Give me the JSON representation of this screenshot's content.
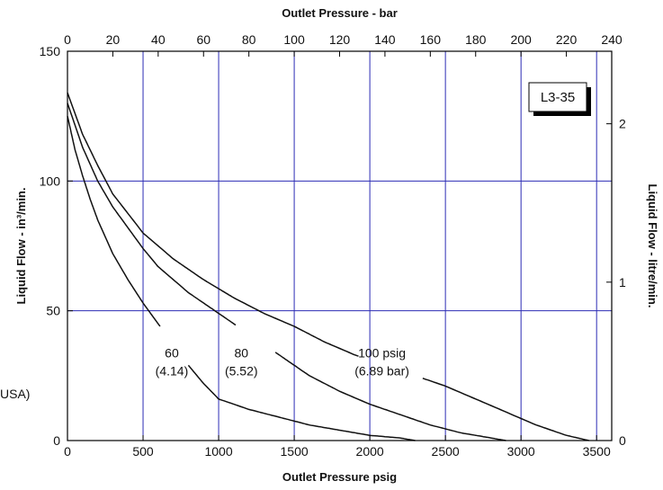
{
  "stray_text": "USA)",
  "chart_data": {
    "type": "line",
    "badge": "L3-35",
    "xlabel": "Outlet Pressure psig",
    "x2label": "Outlet Pressure - bar",
    "ylabel": "Liquid Flow - in³/min.",
    "y2label": "Liquid Flow - litre/min.",
    "xlim": [
      0,
      3600
    ],
    "ylim": [
      0,
      150
    ],
    "x2lim": [
      0,
      240
    ],
    "y2lim": [
      0,
      2.4578
    ],
    "x_ticks": [
      0,
      500,
      1000,
      1500,
      2000,
      2500,
      3000,
      3500
    ],
    "y_ticks": [
      0,
      50,
      100,
      150
    ],
    "x2_ticks": [
      0,
      20,
      40,
      60,
      80,
      100,
      120,
      140,
      160,
      180,
      200,
      220,
      240
    ],
    "y2_ticks": [
      0,
      1,
      2
    ],
    "grid_x": [
      500,
      1000,
      1500,
      2000,
      2500,
      3000,
      3500
    ],
    "grid_y": [
      50,
      100
    ],
    "grid_color": "#2c2cb4",
    "series": [
      {
        "name": "100 psig",
        "x": [
          0,
          100,
          200,
          300,
          500,
          700,
          900,
          1100,
          1300,
          1500,
          1700,
          1900,
          2100,
          2300,
          2500,
          2700,
          2900,
          3100,
          3300,
          3450
        ],
        "y": [
          134,
          118,
          106,
          95,
          80,
          70,
          62,
          55,
          49,
          44,
          38,
          33,
          29,
          25,
          21,
          16,
          11,
          6,
          2,
          0
        ]
      },
      {
        "name": "80",
        "x": [
          0,
          100,
          200,
          300,
          400,
          500,
          600,
          800,
          1000,
          1100,
          1200,
          1400,
          1600,
          1800,
          2000,
          2200,
          2400,
          2600,
          2800,
          2900
        ],
        "y": [
          130,
          113,
          100,
          90,
          82,
          74,
          67,
          57,
          49,
          45,
          41,
          33,
          25,
          19,
          14,
          10,
          6,
          3,
          1,
          0
        ]
      },
      {
        "name": "60",
        "x": [
          0,
          50,
          100,
          150,
          200,
          300,
          400,
          500,
          600,
          700,
          800,
          900,
          1000,
          1200,
          1400,
          1600,
          1800,
          2000,
          2200,
          2300
        ],
        "y": [
          125,
          112,
          102,
          93,
          85,
          72,
          62,
          53,
          45,
          37,
          29,
          22,
          16,
          12,
          9,
          6,
          4,
          2,
          1,
          0
        ]
      }
    ],
    "annotations": [
      {
        "lines": [
          "60",
          "(4.14)"
        ],
        "x": 690,
        "y": 32
      },
      {
        "lines": [
          "80",
          "(5.52)"
        ],
        "x": 1150,
        "y": 32
      },
      {
        "lines": [
          "100 psig",
          "(6.89 bar)"
        ],
        "x": 2080,
        "y": 32
      }
    ],
    "legend": "none"
  }
}
